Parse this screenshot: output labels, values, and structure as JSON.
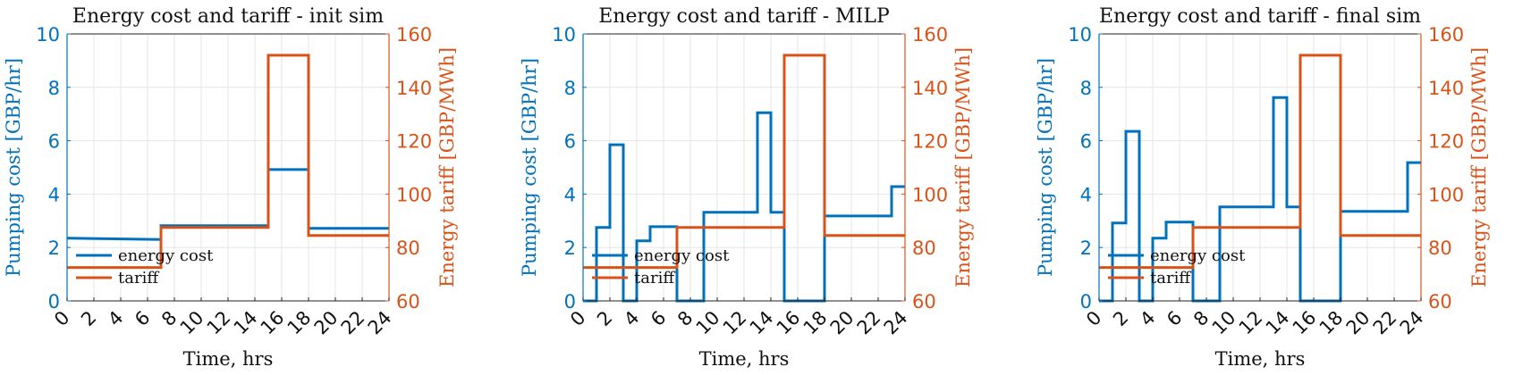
{
  "colors": {
    "energy_cost": "#0072BD",
    "tariff": "#D95319",
    "grid": "#e6e6e6",
    "frame": "#222222"
  },
  "chart_data": [
    {
      "type": "line",
      "title": "Energy cost and tariff - init sim",
      "xlabel": "Time, hrs",
      "ylabel_left": "Pumping cost [GBP/hr]",
      "ylabel_right": "Energy tariff [GBP/MWh]",
      "xlim": [
        0,
        24
      ],
      "ylim_left": [
        0,
        10
      ],
      "ylim_right": [
        60,
        160
      ],
      "x_ticks": [
        "0",
        "2",
        "4",
        "6",
        "8",
        "10",
        "12",
        "14",
        "16",
        "18",
        "20",
        "22",
        "24"
      ],
      "y_left_ticks": [
        "0",
        "2",
        "4",
        "6",
        "8",
        "10"
      ],
      "y_right_ticks": [
        "60",
        "80",
        "100",
        "120",
        "140",
        "160"
      ],
      "grid": true,
      "legend_position": "bottom-left",
      "series": [
        {
          "name": "energy cost",
          "axis": "left",
          "style": "stairs",
          "x": [
            0,
            7,
            15,
            18,
            24
          ],
          "y": [
            2.35,
            2.82,
            4.92,
            2.72,
            2.72
          ],
          "y_end_first_segment": 2.3
        },
        {
          "name": "tariff",
          "axis": "right",
          "style": "stairs",
          "x": [
            0,
            7,
            15,
            18,
            24
          ],
          "y": [
            72.5,
            87.5,
            152,
            84.5,
            84.5
          ]
        }
      ]
    },
    {
      "type": "line",
      "title": "Energy cost and tariff - MILP",
      "xlabel": "Time, hrs",
      "ylabel_left": "Pumping cost [GBP/hr]",
      "ylabel_right": "Energy tariff [GBP/MWh]",
      "xlim": [
        0,
        24
      ],
      "ylim_left": [
        0,
        10
      ],
      "ylim_right": [
        60,
        160
      ],
      "x_ticks": [
        "0",
        "2",
        "4",
        "6",
        "8",
        "10",
        "12",
        "14",
        "16",
        "18",
        "20",
        "22",
        "24"
      ],
      "y_left_ticks": [
        "0",
        "2",
        "4",
        "6",
        "8",
        "10"
      ],
      "y_right_ticks": [
        "60",
        "80",
        "100",
        "120",
        "140",
        "160"
      ],
      "grid": true,
      "legend_position": "bottom-left",
      "series": [
        {
          "name": "energy cost",
          "axis": "left",
          "style": "stairs",
          "x": [
            0,
            1,
            2,
            3,
            4,
            5,
            7,
            8,
            9,
            13,
            14,
            15,
            18,
            23,
            24
          ],
          "y": [
            0,
            2.75,
            5.85,
            0,
            2.25,
            2.78,
            0,
            0,
            3.32,
            7.05,
            3.32,
            0,
            3.18,
            4.28,
            4.28
          ]
        },
        {
          "name": "tariff",
          "axis": "right",
          "style": "stairs",
          "x": [
            0,
            7,
            15,
            18,
            24
          ],
          "y": [
            72.5,
            87.5,
            152,
            84.5,
            84.5
          ]
        }
      ]
    },
    {
      "type": "line",
      "title": "Energy cost and tariff - final sim",
      "xlabel": "Time, hrs",
      "ylabel_left": "Pumping cost [GBP/hr]",
      "ylabel_right": "Energy tariff [GBP/MWh]",
      "xlim": [
        0,
        24
      ],
      "ylim_left": [
        0,
        10
      ],
      "ylim_right": [
        60,
        160
      ],
      "x_ticks": [
        "0",
        "2",
        "4",
        "6",
        "8",
        "10",
        "12",
        "14",
        "16",
        "18",
        "20",
        "22",
        "24"
      ],
      "y_left_ticks": [
        "0",
        "2",
        "4",
        "6",
        "8",
        "10"
      ],
      "y_right_ticks": [
        "60",
        "80",
        "100",
        "120",
        "140",
        "160"
      ],
      "grid": true,
      "legend_position": "bottom-left",
      "series": [
        {
          "name": "energy cost",
          "axis": "left",
          "style": "stairs",
          "x": [
            0,
            1,
            2,
            3,
            4,
            5,
            7,
            8,
            9,
            13,
            14,
            15,
            18,
            23,
            24
          ],
          "y": [
            0,
            2.92,
            6.35,
            0,
            2.35,
            2.95,
            0,
            0,
            3.52,
            7.62,
            3.52,
            0,
            3.35,
            5.18,
            5.18
          ]
        },
        {
          "name": "tariff",
          "axis": "right",
          "style": "stairs",
          "x": [
            0,
            7,
            15,
            18,
            24
          ],
          "y": [
            72.5,
            87.5,
            152,
            84.5,
            84.5
          ]
        }
      ]
    }
  ]
}
